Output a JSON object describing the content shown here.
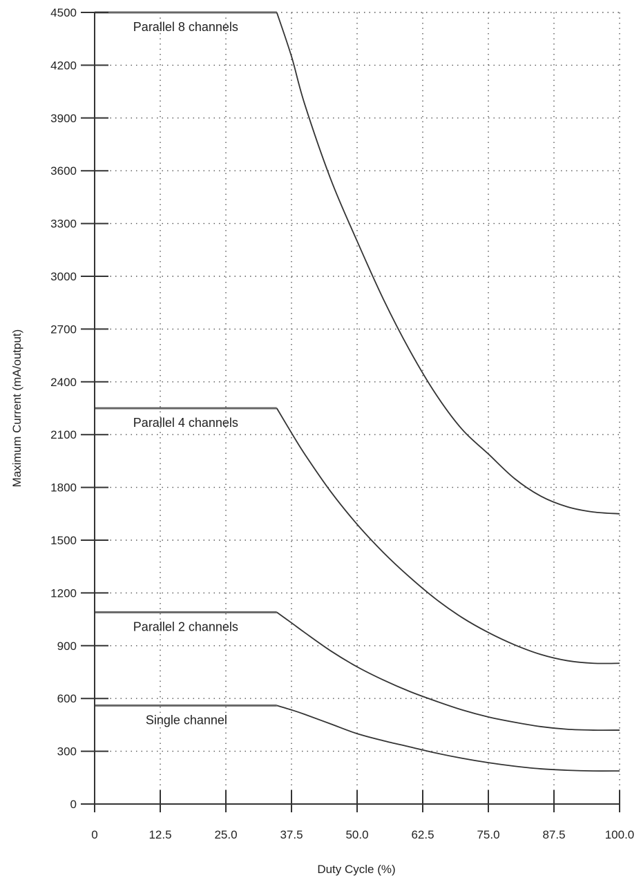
{
  "chart_data": {
    "type": "line",
    "xlabel": "Duty Cycle (%)",
    "ylabel": "Maximum Current (mA/output)",
    "xlim": [
      0,
      100
    ],
    "ylim": [
      0,
      4500
    ],
    "x_ticks": [
      "0",
      "12.5",
      "25.0",
      "37.5",
      "50.0",
      "62.5",
      "75.0",
      "87.5",
      "100.0"
    ],
    "y_ticks": [
      "0",
      "300",
      "600",
      "900",
      "1200",
      "1500",
      "1800",
      "2100",
      "2400",
      "2700",
      "3000",
      "3300",
      "3600",
      "3900",
      "4200",
      "4500"
    ],
    "grid": true,
    "series": [
      {
        "name": "Parallel 8 channels",
        "x": [
          0,
          34.7,
          37.5,
          40,
          45,
          50,
          55,
          60,
          65,
          70,
          75,
          80,
          85,
          90,
          95,
          100
        ],
        "values": [
          4500,
          4500,
          4250,
          3980,
          3550,
          3200,
          2870,
          2580,
          2330,
          2130,
          1990,
          1850,
          1750,
          1690,
          1660,
          1650
        ]
      },
      {
        "name": "Parallel 4 channels",
        "x": [
          0,
          34.7,
          37.5,
          40,
          45,
          50,
          55,
          60,
          65,
          70,
          75,
          80,
          85,
          90,
          95,
          100
        ],
        "values": [
          2250,
          2250,
          2110,
          1990,
          1775,
          1590,
          1430,
          1290,
          1165,
          1060,
          975,
          905,
          850,
          815,
          800,
          800
        ]
      },
      {
        "name": "Parallel 2 channels",
        "x": [
          0,
          34.7,
          37.5,
          40,
          45,
          50,
          55,
          60,
          65,
          70,
          75,
          80,
          85,
          90,
          95,
          100
        ],
        "values": [
          1090,
          1090,
          1030,
          975,
          870,
          780,
          705,
          640,
          585,
          535,
          495,
          465,
          440,
          425,
          420,
          420
        ]
      },
      {
        "name": "Single channel",
        "x": [
          0,
          34.7,
          37.5,
          40,
          45,
          50,
          55,
          60,
          65,
          70,
          75,
          80,
          85,
          90,
          95,
          100
        ],
        "values": [
          560,
          560,
          535,
          510,
          455,
          400,
          360,
          325,
          290,
          260,
          235,
          215,
          200,
          192,
          188,
          188
        ]
      }
    ]
  }
}
